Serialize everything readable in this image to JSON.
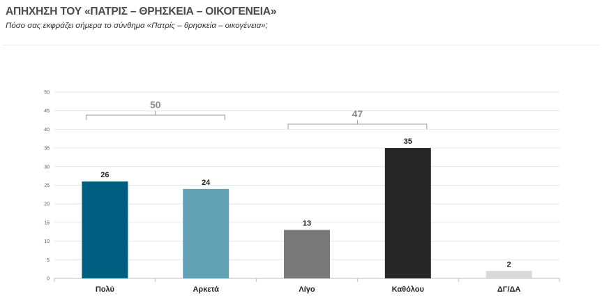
{
  "header": {
    "title": "ΑΠΗΧΗΣΗ ΤΟΥ «ΠΑΤΡΙΣ – ΘΡΗΣΚΕΙΑ – ΟΙΚΟΓΕΝΕΙΑ»",
    "subtitle": "Πόσο σας εκφράζει σήμερα το σύνθημα «Πατρίς – θρησκεία – οικογένεια»;"
  },
  "chart_data": {
    "type": "bar",
    "categories": [
      "Πολύ",
      "Αρκετά",
      "Λίγο",
      "Καθόλου",
      "ΔΓ/ΔΑ"
    ],
    "values": [
      26,
      24,
      13,
      35,
      2
    ],
    "value_labels": [
      "26",
      "24",
      "13",
      "35",
      "2"
    ],
    "colors": [
      "#005f80",
      "#62a2b5",
      "#787878",
      "#262626",
      "#d9d9d9"
    ],
    "ylim": [
      0,
      50
    ],
    "yticks": [
      "0",
      "5",
      "10",
      "15",
      "20",
      "25",
      "30",
      "35",
      "40",
      "45",
      "50"
    ],
    "grid": true,
    "groups": [
      {
        "label": "50",
        "from": 0,
        "to": 1,
        "value": 50
      },
      {
        "label": "47",
        "from": 2,
        "to": 3,
        "value": 47
      }
    ]
  }
}
